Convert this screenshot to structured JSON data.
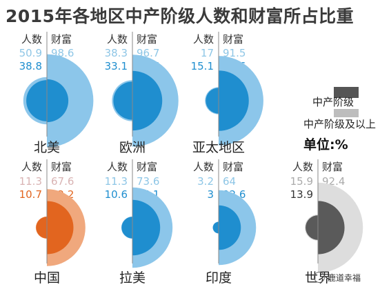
{
  "title": "2015年各地区中产阶级人数和财富所占比重",
  "colors": {
    "blue_dark": "#1f8ecf",
    "blue_light": "#8cc6ea",
    "blue_light_text": "#8ec6e6",
    "orange_dark": "#e2651f",
    "orange_light": "#f0a87d",
    "gray_dark": "#5a5a5a",
    "gray_light": "#dddddd",
    "legend_dark": "#555555",
    "legend_light": "#bdbdbd",
    "faded_text_orange": "#d9b3b3",
    "faded_text_gray": "#aaaaaa"
  },
  "legend": {
    "middle_class": "中产阶级",
    "middle_class_and_above": "中产阶级及以上",
    "unit": "单位:%"
  },
  "watermark": "鹿道幸福",
  "chart_data": {
    "type": "pie",
    "column_headers": [
      "人数",
      "财富"
    ],
    "series_names": [
      "中产阶级及以上",
      "中产阶级"
    ],
    "regions": [
      {
        "name": "北美",
        "theme": "blue",
        "above": {
          "people": "50.9",
          "wealth": "98.6"
        },
        "middle": {
          "people": "38.8",
          "wealth": "21"
        }
      },
      {
        "name": "欧洲",
        "theme": "blue",
        "above": {
          "people": "38.3",
          "wealth": "96.7"
        },
        "middle": {
          "people": "33.1",
          "wealth": "40.6"
        }
      },
      {
        "name": "亚太地区",
        "theme": "blue",
        "above": {
          "people": "17",
          "wealth": "91.5"
        },
        "middle": {
          "people": "15.1",
          "wealth": "41.6"
        }
      },
      {
        "name": "中国",
        "theme": "orange",
        "above": {
          "people": "11.3",
          "wealth": "67.6"
        },
        "middle": {
          "people": "10.7",
          "wealth": "32.2"
        }
      },
      {
        "name": "拉美",
        "theme": "blue",
        "above": {
          "people": "11.3",
          "wealth": "73.6"
        },
        "middle": {
          "people": "10.6",
          "wealth": "35.1"
        }
      },
      {
        "name": "印度",
        "theme": "blue",
        "above": {
          "people": "3.2",
          "wealth": "64"
        },
        "middle": {
          "people": "3",
          "wealth": "22.6"
        }
      },
      {
        "name": "世界",
        "theme": "gray",
        "above": {
          "people": "15.9",
          "wealth": "92.4"
        },
        "middle": {
          "people": "13.9",
          "wealth": "32.3"
        }
      }
    ]
  }
}
